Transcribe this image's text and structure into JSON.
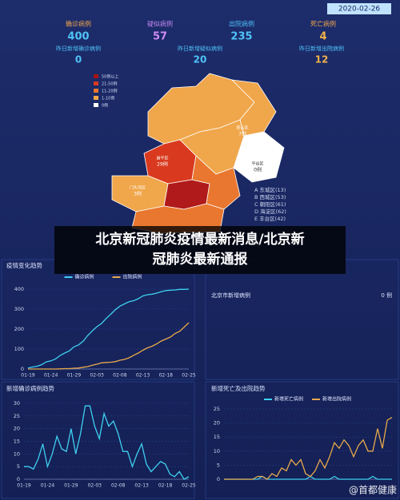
{
  "header": {
    "date": "2020-02-26"
  },
  "stats": [
    {
      "label": "确诊病例",
      "value": 400,
      "label_color": "#f0a64a",
      "color": "#4fc3f7"
    },
    {
      "label": "疑似病例",
      "value": 57,
      "label_color": "#c58bf0",
      "color": "#d08cf5"
    },
    {
      "label": "出院病例",
      "value": 235,
      "label_color": "#4fc3f7",
      "color": "#4fc3f7"
    },
    {
      "label": "死亡病例",
      "value": 4,
      "label_color": "#f0a64a",
      "color": "#f0b24a"
    }
  ],
  "sub_stats": [
    {
      "label": "昨日新增确诊病例",
      "value": 0
    },
    {
      "label": "昨日新增疑似病例",
      "value": 20
    },
    {
      "label": "昨日新增出院病例",
      "value": 12
    }
  ],
  "map": {
    "legend": [
      {
        "label": "50例以上",
        "color": "#a5150f"
      },
      {
        "label": "21-50例",
        "color": "#d93a1f"
      },
      {
        "label": "11-20例",
        "color": "#e9772f"
      },
      {
        "label": "1-10例",
        "color": "#f0a64a"
      },
      {
        "label": "0例",
        "color": "#ffffff"
      }
    ],
    "districts": [
      "A 东城区(13)",
      "B 西城区(53)",
      "C 朝阳区(61)",
      "D 海淀区(62)",
      "E 丰台区(42)"
    ],
    "region_labels": [
      {
        "name": "密云区",
        "count": "7例"
      },
      {
        "name": "平谷区",
        "count": "0例"
      },
      {
        "name": "昌平区",
        "count": "29例"
      },
      {
        "name": "门头沟区",
        "count": "3例"
      }
    ]
  },
  "banner": [
    "北京新冠肺炎疫情最新消息/北京新",
    "冠肺炎最新通报"
  ],
  "new_cases_panel": {
    "title": "北京市新增病例",
    "count": "0 例"
  },
  "watermark": "@首都健康",
  "chart_data": [
    {
      "type": "line",
      "title": "疫情变化趋势",
      "categories": [
        "01-19",
        null,
        null,
        null,
        null,
        "01-24",
        null,
        null,
        null,
        null,
        "01-29",
        null,
        null,
        null,
        null,
        "02-03",
        null,
        null,
        null,
        null,
        "02-08",
        null,
        null,
        null,
        null,
        "02-13",
        null,
        null,
        null,
        null,
        "02-18",
        null,
        null,
        null,
        null,
        "02-25"
      ],
      "series": [
        {
          "name": "确诊病例",
          "color": "#3fd0f0",
          "values": [
            5,
            10,
            14,
            22,
            36,
            41,
            51,
            68,
            80,
            91,
            111,
            121,
            139,
            168,
            191,
            212,
            228,
            253,
            274,
            297,
            315,
            326,
            337,
            342,
            352,
            366,
            372,
            375,
            380,
            387,
            393,
            395,
            396,
            399,
            399,
            400
          ]
        },
        {
          "name": "出院病例",
          "color": "#e8a84a",
          "values": [
            0,
            0,
            0,
            0,
            0,
            0,
            0,
            1,
            2,
            2,
            4,
            5,
            9,
            12,
            19,
            24,
            31,
            33,
            34,
            37,
            44,
            48,
            56,
            69,
            80,
            94,
            106,
            114,
            126,
            140,
            150,
            160,
            178,
            189,
            210,
            232
          ]
        }
      ],
      "ylim": [
        0,
        400
      ],
      "yticks": [
        0,
        100,
        200,
        300,
        400
      ],
      "grid": true
    },
    {
      "type": "line",
      "title": "新增确诊病例趋势",
      "categories": [
        "01-19",
        null,
        null,
        null,
        null,
        "01-24",
        null,
        null,
        null,
        null,
        "01-29",
        null,
        null,
        null,
        null,
        "02-03",
        null,
        null,
        null,
        null,
        "02-08",
        null,
        null,
        null,
        null,
        "02-13",
        null,
        null,
        null,
        null,
        "02-18",
        null,
        null,
        null,
        null,
        "02-25"
      ],
      "series": [
        {
          "name": "新增确诊病例",
          "color": "#3fd0f0",
          "values": [
            5,
            5,
            4,
            8,
            14,
            5,
            10,
            17,
            12,
            11,
            20,
            10,
            18,
            29,
            29,
            21,
            16,
            26,
            21,
            23,
            18,
            11,
            11,
            5,
            10,
            14,
            6,
            3,
            5,
            7,
            6,
            2,
            1,
            3,
            0,
            1
          ]
        }
      ],
      "ylim": [
        0,
        30
      ],
      "yticks": [
        0,
        5,
        10,
        15,
        20,
        25,
        30
      ],
      "grid": true,
      "legend": false
    },
    {
      "type": "line",
      "title": "新增死亡及出院趋势",
      "categories": [
        null,
        null,
        null,
        null,
        null,
        null,
        null,
        null,
        null,
        null,
        null,
        null,
        null,
        null,
        null,
        null,
        null,
        null,
        null,
        null,
        null,
        null,
        null,
        null,
        null,
        null,
        null,
        null,
        null,
        null,
        null,
        null,
        null,
        null,
        null,
        null
      ],
      "series": [
        {
          "name": "新增死亡病例",
          "color": "#3fd0f0",
          "values": [
            0,
            0,
            0,
            0,
            0,
            0,
            0,
            0,
            1,
            0,
            0,
            0,
            0,
            0,
            0,
            0,
            0,
            0,
            1,
            0,
            0,
            0,
            0,
            1,
            0,
            0,
            0,
            0,
            0,
            0,
            0,
            1,
            0,
            0,
            0,
            0
          ]
        },
        {
          "name": "新增出院病例",
          "color": "#e8a84a",
          "values": [
            0,
            0,
            0,
            0,
            0,
            0,
            0,
            1,
            1,
            0,
            2,
            1,
            4,
            3,
            7,
            5,
            7,
            2,
            1,
            3,
            7,
            4,
            8,
            13,
            11,
            14,
            12,
            8,
            12,
            14,
            10,
            10,
            18,
            11,
            21,
            22
          ]
        }
      ],
      "ylim": [
        0,
        25
      ],
      "yticks": [
        0,
        5,
        10,
        15,
        20,
        25
      ],
      "grid": true
    }
  ]
}
